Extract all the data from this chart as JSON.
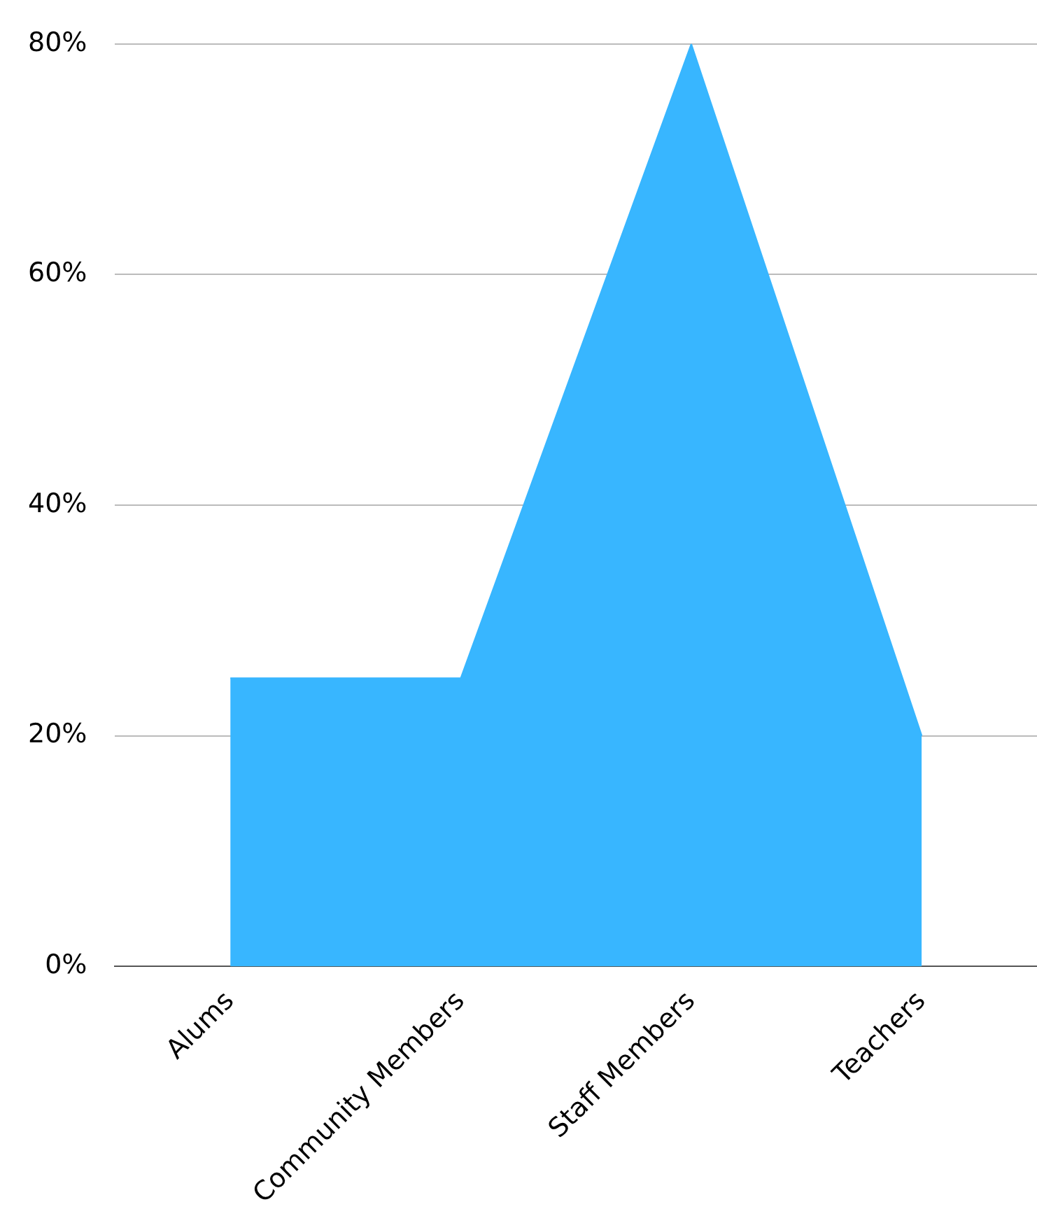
{
  "chart_data": {
    "type": "area",
    "categories": [
      "Alums",
      "Community Members",
      "Staff Members",
      "Teachers"
    ],
    "series": [
      {
        "color": "#38b6ff",
        "values": [
          25,
          25,
          80,
          20
        ]
      }
    ],
    "ylim": [
      0,
      80
    ],
    "yticks": [
      {
        "value": 0,
        "label": "0%"
      },
      {
        "value": 20,
        "label": "20%"
      },
      {
        "value": 40,
        "label": "40%"
      },
      {
        "value": 60,
        "label": "60%"
      },
      {
        "value": 80,
        "label": "80%"
      }
    ],
    "grid": "y",
    "legend": false
  }
}
